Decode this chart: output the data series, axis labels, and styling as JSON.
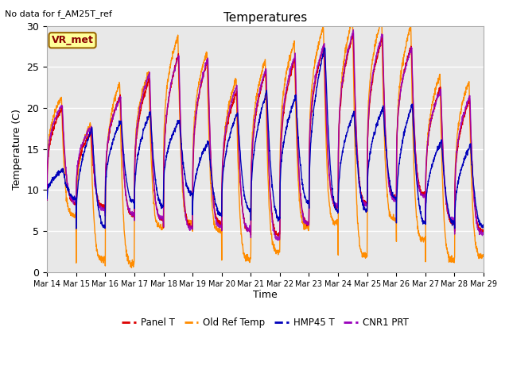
{
  "title": "Temperatures",
  "ylabel": "Temperature (C)",
  "xlabel": "Time",
  "note": "No data for f_AM25T_ref",
  "annotation": "VR_met",
  "ylim": [
    0,
    30
  ],
  "plot_bg_color": "#e8e8e8",
  "grid_color": "white",
  "series": {
    "panel_t": {
      "label": "Panel T",
      "color": "#dd0000"
    },
    "old_ref": {
      "label": "Old Ref Temp",
      "color": "#ff8c00"
    },
    "hmp45": {
      "label": "HMP45 T",
      "color": "#0000bb"
    },
    "cnr1": {
      "label": "CNR1 PRT",
      "color": "#9900bb"
    }
  },
  "xtick_labels": [
    "Mar 14",
    "Mar 15",
    "Mar 16",
    "Mar 17",
    "Mar 18",
    "Mar 19",
    "Mar 20",
    "Mar 21",
    "Mar 22",
    "Mar 23",
    "Mar 24",
    "Mar 25",
    "Mar 26",
    "Mar 27",
    "Mar 28",
    "Mar 29"
  ],
  "n_days": 15,
  "pts_per_day": 144,
  "day_peaks": [
    20.0,
    17.0,
    21.5,
    23.5,
    26.5,
    25.8,
    22.0,
    24.5,
    26.0,
    27.5,
    29.0,
    28.5,
    27.5,
    22.5,
    21.0
  ],
  "day_mins_panel": [
    8.5,
    8.0,
    7.0,
    6.5,
    5.5,
    6.0,
    5.0,
    4.5,
    6.0,
    8.0,
    8.5,
    9.0,
    9.5,
    6.0,
    5.0
  ],
  "day_mins_orange": [
    7.0,
    1.5,
    1.0,
    5.5,
    6.0,
    5.0,
    1.5,
    2.5,
    5.5,
    6.0,
    2.0,
    6.5,
    4.0,
    1.5,
    2.0
  ],
  "day_peaks_blue": [
    12.5,
    17.5,
    18.5,
    19.5,
    18.5,
    16.0,
    19.5,
    22.0,
    21.5,
    27.5,
    19.5,
    20.0,
    20.5,
    16.0,
    15.5
  ],
  "day_mins_blue": [
    9.0,
    5.5,
    8.5,
    8.0,
    9.5,
    7.0,
    7.5,
    6.5,
    8.5,
    7.5,
    7.5,
    9.0,
    6.0,
    6.0,
    5.5
  ]
}
